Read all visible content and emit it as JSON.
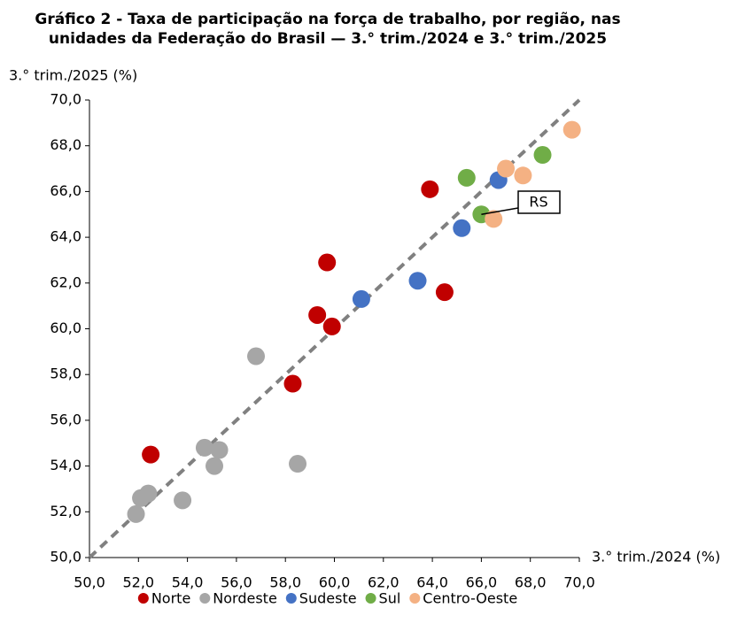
{
  "chart_data": {
    "type": "scatter",
    "title": [
      "Gráfico 2 - Taxa de participação na força de trabalho, por região, nas",
      "unidades da Federação do Brasil — 3.° trim./2024 e 3.° trim./2025"
    ],
    "x_label": "3.° trim./2024 (%)",
    "y_label": "3.° trim./2025 (%)",
    "xlim": [
      50,
      70
    ],
    "ylim": [
      50,
      70
    ],
    "xticks": [
      {
        "value": 50,
        "label": "50,0"
      },
      {
        "value": 52,
        "label": "52,0"
      },
      {
        "value": 54,
        "label": "54,0"
      },
      {
        "value": 56,
        "label": "56,0"
      },
      {
        "value": 58,
        "label": "58,0"
      },
      {
        "value": 60,
        "label": "60,0"
      },
      {
        "value": 62,
        "label": "62,0"
      },
      {
        "value": 64,
        "label": "64,0"
      },
      {
        "value": 66,
        "label": "66,0"
      },
      {
        "value": 68,
        "label": "68,0"
      },
      {
        "value": 70,
        "label": "70,0"
      }
    ],
    "yticks": [
      {
        "value": 50,
        "label": "50,0"
      },
      {
        "value": 52,
        "label": "52,0"
      },
      {
        "value": 54,
        "label": "54,0"
      },
      {
        "value": 56,
        "label": "56,0"
      },
      {
        "value": 58,
        "label": "58,0"
      },
      {
        "value": 60,
        "label": "60,0"
      },
      {
        "value": 62,
        "label": "62,0"
      },
      {
        "value": 64,
        "label": "64,0"
      },
      {
        "value": 66,
        "label": "66,0"
      },
      {
        "value": 68,
        "label": "68,0"
      },
      {
        "value": 70,
        "label": "70,0"
      }
    ],
    "series": [
      {
        "name": "Norte",
        "color": "#c00000",
        "x": [
          52.5,
          58.3,
          59.3,
          59.9,
          59.7,
          63.9,
          64.5
        ],
        "values": [
          54.5,
          57.6,
          60.6,
          60.1,
          62.9,
          66.1,
          61.6
        ]
      },
      {
        "name": "Nordeste",
        "color": "#a6a6a6",
        "x": [
          51.9,
          52.1,
          52.4,
          53.8,
          54.7,
          55.3,
          55.1,
          56.8,
          58.5
        ],
        "values": [
          51.9,
          52.6,
          52.8,
          52.5,
          54.8,
          54.7,
          54.0,
          58.8,
          54.1
        ]
      },
      {
        "name": "Sudeste",
        "color": "#4472c4",
        "x": [
          61.1,
          63.4,
          65.2,
          66.7
        ],
        "values": [
          61.3,
          62.1,
          64.4,
          66.5
        ]
      },
      {
        "name": "Sul",
        "color": "#70ad47",
        "x": [
          65.4,
          66.0,
          68.5
        ],
        "values": [
          66.6,
          65.0,
          67.6
        ]
      },
      {
        "name": "Centro-Oeste",
        "color": "#f4b183",
        "x": [
          67.0,
          67.7,
          66.5,
          69.7
        ],
        "values": [
          67.0,
          66.7,
          64.8,
          68.7
        ]
      }
    ],
    "annotation": {
      "text": "RS",
      "series": 3,
      "point": 1
    }
  }
}
